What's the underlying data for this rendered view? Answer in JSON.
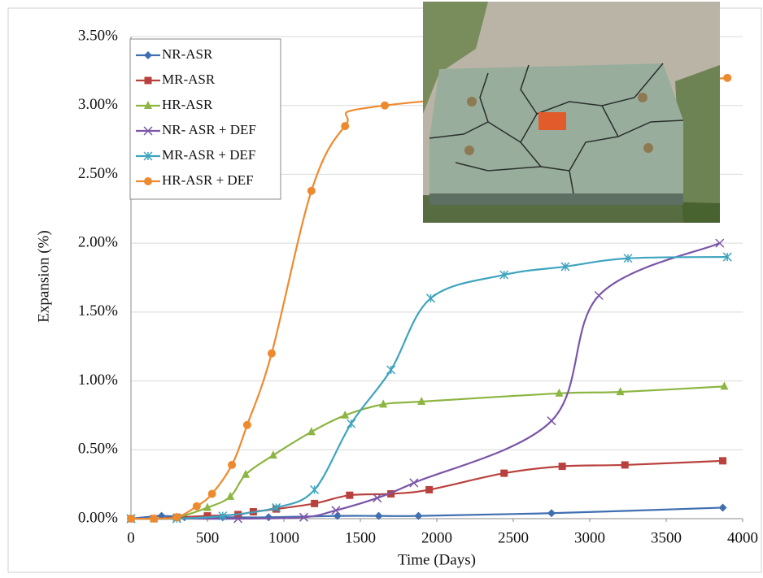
{
  "chart_data": {
    "type": "line",
    "xlabel": "Time (Days)",
    "ylabel": "Expansion  (%)",
    "xlim": [
      0,
      4000
    ],
    "xticks": [
      0,
      500,
      1000,
      1500,
      2000,
      2500,
      3000,
      3500,
      4000
    ],
    "ylim": [
      0,
      3.5
    ],
    "yticks": [
      {
        "value": 0,
        "label": "0.00%"
      },
      {
        "value": 0.5,
        "label": "0.50%"
      },
      {
        "value": 1,
        "label": "1.00%"
      },
      {
        "value": 1.5,
        "label": "1.50%"
      },
      {
        "value": 2,
        "label": "2.00%"
      },
      {
        "value": 2.5,
        "label": "2.50%"
      },
      {
        "value": 3,
        "label": "3.00%"
      },
      {
        "value": 3.5,
        "label": "3.50%"
      }
    ],
    "grid": true,
    "legend": "upper left",
    "series": [
      {
        "name": "NR-ASR",
        "color": "#3f6fb0",
        "marker": "diamond",
        "x": [
          0,
          200,
          350,
          600,
          900,
          1350,
          1620,
          1880,
          2750,
          3870
        ],
        "values": [
          0,
          0.02,
          0.01,
          0.01,
          0.01,
          0.02,
          0.02,
          0.02,
          0.04,
          0.08
        ]
      },
      {
        "name": "MR-ASR",
        "color": "#b9413d",
        "marker": "square",
        "x": [
          0,
          150,
          300,
          500,
          700,
          800,
          950,
          1200,
          1430,
          1700,
          1950,
          2440,
          2820,
          3230,
          3870
        ],
        "values": [
          0,
          0,
          0.01,
          0.02,
          0.03,
          0.05,
          0.07,
          0.11,
          0.17,
          0.18,
          0.21,
          0.33,
          0.38,
          0.39,
          0.42
        ]
      },
      {
        "name": "HR-ASR",
        "color": "#8db542",
        "marker": "triangle",
        "x": [
          0,
          150,
          300,
          500,
          650,
          750,
          930,
          1180,
          1400,
          1650,
          1900,
          2800,
          3200,
          3880
        ],
        "values": [
          0,
          0,
          0.01,
          0.08,
          0.16,
          0.32,
          0.46,
          0.63,
          0.75,
          0.83,
          0.85,
          0.91,
          0.92,
          0.96
        ]
      },
      {
        "name": "NR- ASR + DEF",
        "color": "#7a55a8",
        "marker": "x",
        "x": [
          0,
          300,
          700,
          1130,
          1340,
          1610,
          1850,
          2750,
          3060,
          3850
        ],
        "values": [
          0,
          0,
          0,
          0.01,
          0.06,
          0.15,
          0.26,
          0.71,
          1.62,
          2.0
        ]
      },
      {
        "name": "MR-ASR + DEF",
        "color": "#3fa4bf",
        "marker": "asterisk",
        "x": [
          0,
          300,
          600,
          950,
          1200,
          1440,
          1700,
          1960,
          2440,
          2840,
          3250,
          3900
        ],
        "values": [
          0,
          0,
          0.02,
          0.08,
          0.21,
          0.69,
          1.08,
          1.6,
          1.77,
          1.83,
          1.89,
          1.9
        ]
      },
      {
        "name": "HR-ASR + DEF",
        "color": "#ee8a2e",
        "marker": "circle",
        "x": [
          0,
          150,
          300,
          430,
          530,
          660,
          760,
          920,
          1180,
          1400,
          1660,
          3900
        ],
        "values": [
          0,
          0,
          0.01,
          0.09,
          0.18,
          0.39,
          0.68,
          1.2,
          2.38,
          2.85,
          3.0,
          3.2
        ]
      }
    ]
  }
}
